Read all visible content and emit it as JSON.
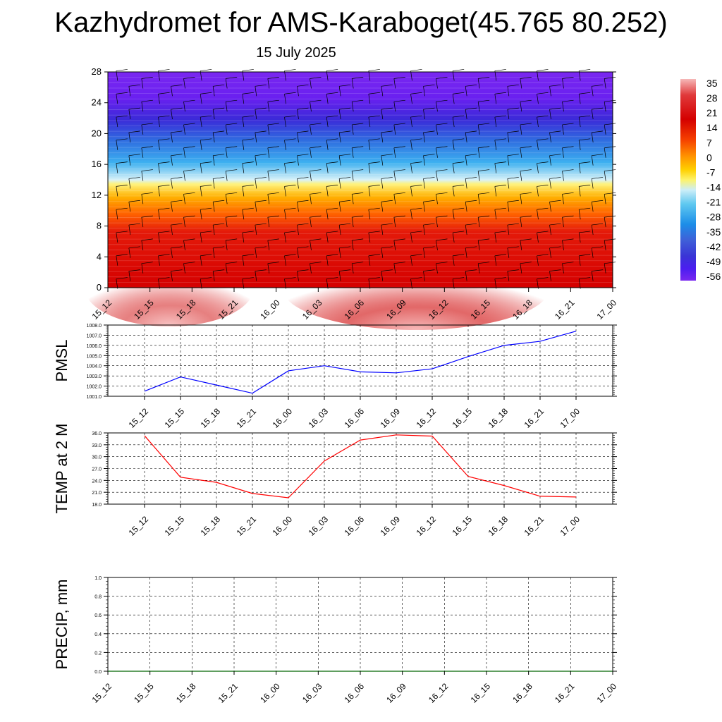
{
  "page": {
    "title": "Kazhydromet for AMS-Karaboget(45.765 80.252)",
    "subtitle": "15 July 2025"
  },
  "chart_data": [
    {
      "type": "heatmap",
      "name": "temperature-cross-section",
      "x_ticks": [
        "15_12",
        "15_15",
        "15_18",
        "15_21",
        "16_00",
        "16_03",
        "16_06",
        "16_09",
        "16_12",
        "16_15",
        "16_18",
        "16_21",
        "17_00"
      ],
      "y_ticks": [
        "0",
        "4",
        "8",
        "12",
        "16",
        "20",
        "24",
        "28"
      ],
      "ylim": [
        0,
        28
      ],
      "colorbar_labels": [
        "35",
        "28",
        "21",
        "14",
        "7",
        "0",
        "-7",
        "-14",
        "-21",
        "-28",
        "-35",
        "-42",
        "-49",
        "-56"
      ],
      "colorbar_colors": [
        "#f6b8b8",
        "#e0393a",
        "#d40000",
        "#f53f00",
        "#ff9000",
        "#ffd000",
        "#fdf36a",
        "#cdeef8",
        "#5fc8f0",
        "#1c8ee8",
        "#3f5fd8",
        "#3a34d6",
        "#4b1df0",
        "#7a28f0"
      ],
      "wind_barbs": true
    },
    {
      "type": "line",
      "name": "pmsl",
      "ylabel": "PMSL",
      "x": [
        "15_12",
        "15_15",
        "15_18",
        "15_21",
        "16_00",
        "16_03",
        "16_06",
        "16_09",
        "16_12",
        "16_15",
        "16_18",
        "16_21",
        "17_00"
      ],
      "values": [
        1001.5,
        1002.9,
        1002.1,
        1001.3,
        1003.5,
        1004.0,
        1003.4,
        1003.3,
        1003.7,
        1004.9,
        1006.0,
        1006.4,
        1007.4
      ],
      "y_ticks": [
        "1001.0",
        "1002.0",
        "1003.0",
        "1004.0",
        "1005.0",
        "1006.0",
        "1007.0",
        "1008.0"
      ],
      "ylim": [
        1001,
        1008
      ],
      "color": "#0000ff",
      "grid": true
    },
    {
      "type": "line",
      "name": "temp2m",
      "ylabel": "TEMP at 2 M",
      "x": [
        "15_12",
        "15_15",
        "15_18",
        "15_21",
        "16_00",
        "16_03",
        "16_06",
        "16_09",
        "16_12",
        "16_15",
        "16_18",
        "16_21",
        "17_00"
      ],
      "values": [
        35.3,
        24.8,
        23.5,
        20.7,
        19.6,
        28.9,
        34.2,
        35.5,
        35.2,
        25.0,
        22.7,
        20.0,
        19.8
      ],
      "y_ticks": [
        "18.0",
        "21.0",
        "24.0",
        "27.0",
        "30.0",
        "33.0",
        "36.0"
      ],
      "ylim": [
        18,
        36
      ],
      "color": "#ff0000",
      "grid": true
    },
    {
      "type": "line",
      "name": "precip",
      "ylabel": "PRECIP, mm",
      "x": [
        "15_12",
        "15_15",
        "15_18",
        "15_21",
        "16_00",
        "16_03",
        "16_06",
        "16_09",
        "16_12",
        "16_15",
        "16_18",
        "16_21",
        "17_00"
      ],
      "values": [
        0,
        0,
        0,
        0,
        0,
        0,
        0,
        0,
        0,
        0,
        0,
        0,
        0
      ],
      "y_ticks": [
        "0.0",
        "0.2",
        "0.4",
        "0.6",
        "0.8",
        "1.0"
      ],
      "ylim": [
        0,
        1
      ],
      "color": "#006400",
      "grid": true
    }
  ]
}
